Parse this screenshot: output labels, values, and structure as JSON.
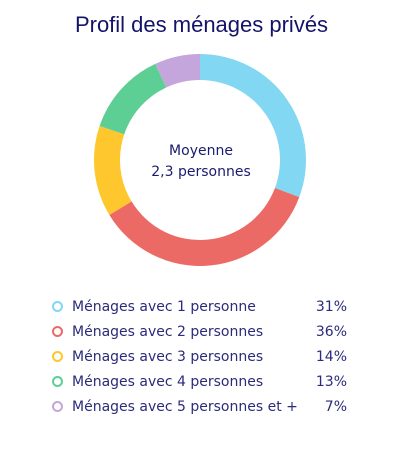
{
  "chart_data": {
    "type": "pie",
    "title": "Profil des ménages privés",
    "center_label": {
      "line1": "Moyenne",
      "line2": "2,3 personnes"
    },
    "legend_placement": "bottom",
    "slices": [
      {
        "label": "Ménages avec 1 personne",
        "value": 31,
        "display": "31%",
        "color": "#82d7f2"
      },
      {
        "label": "Ménages avec 2 personnes",
        "value": 36,
        "display": "36%",
        "color": "#ec6a66"
      },
      {
        "label": "Ménages avec 3 personnes",
        "value": 14,
        "display": "14%",
        "color": "#ffc72e"
      },
      {
        "label": "Ménages avec 4 personnes",
        "value": 13,
        "display": "13%",
        "color": "#5dcf95"
      },
      {
        "label": "Ménages avec 5 personnes et +",
        "value": 7,
        "display": "7%",
        "color": "#c4a6dc"
      }
    ]
  }
}
